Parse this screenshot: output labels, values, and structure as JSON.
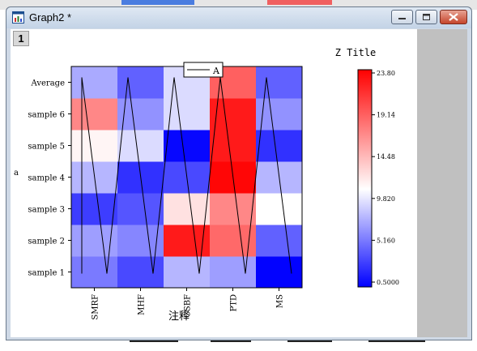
{
  "window": {
    "title": "Graph2 *",
    "layer_tab": "1",
    "buttons": {
      "minimize": "minimize",
      "maximize": "maximize",
      "close": "close"
    }
  },
  "chart_data": {
    "type": "heatmap",
    "title": "",
    "xlabel": "注释",
    "ylabel": "",
    "x_categories": [
      "SMRF",
      "MHF",
      "CSBF",
      "PTD",
      "MS"
    ],
    "y_categories": [
      "sample 1",
      "sample 2",
      "sample 3",
      "sample 4",
      "sample 5",
      "sample 6",
      "Average"
    ],
    "z": [
      [
        5.5,
        3.5,
        8.0,
        7.0,
        0.6
      ],
      [
        7.0,
        6.0,
        22.5,
        18.5,
        4.5
      ],
      [
        3.0,
        4.0,
        12.5,
        17.0,
        11.0
      ],
      [
        8.0,
        2.5,
        3.5,
        23.5,
        8.0
      ],
      [
        11.5,
        9.5,
        0.8,
        22.5,
        2.5
      ],
      [
        17.0,
        6.5,
        9.5,
        22.5,
        6.5
      ],
      [
        7.5,
        4.5,
        9.5,
        19.0,
        4.5
      ]
    ],
    "zlim": [
      0.5,
      23.8
    ],
    "colorbar": {
      "title": "Z Title",
      "ticks": [
        "23.80",
        "19.14",
        "14.48",
        "9.820",
        "5.160",
        "0.5000"
      ],
      "colors": {
        "low": "#0000ff",
        "mid": "#ffffff",
        "high": "#ff0000"
      }
    },
    "legend": {
      "entries": [
        "A"
      ],
      "placement": "top-center"
    },
    "overlay_line": "zigzag connecting sample 1 to Average in each column"
  }
}
